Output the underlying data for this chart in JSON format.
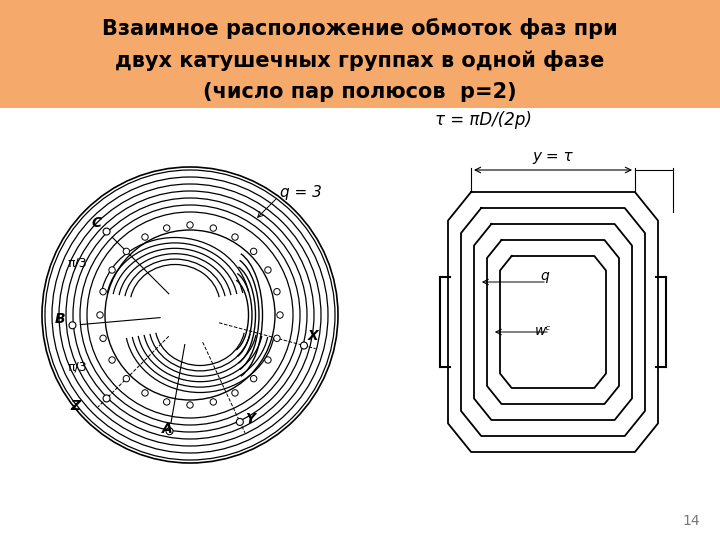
{
  "title_line1": "Взаимное расположение обмоток фаз при",
  "title_line2": "двух катушечных группах в одной фазе",
  "title_line3": "(число пар полюсов  p=2)",
  "header_bg": "#F5A96A",
  "body_bg": "#FFFFFF",
  "title_fontsize": 15,
  "page_number": "14",
  "formula_tau": "τ = πD/(2p)",
  "formula_q": "q = 3",
  "label_y_tau": "y = τ",
  "label_q": "q",
  "label_wc": "wᶜ",
  "label_C": "C",
  "label_B": "B",
  "label_X": "X",
  "label_Y": "Y",
  "label_Z": "Z",
  "label_A": "A",
  "label_pi3_top": "π/3",
  "label_pi3_bot": "π/3"
}
